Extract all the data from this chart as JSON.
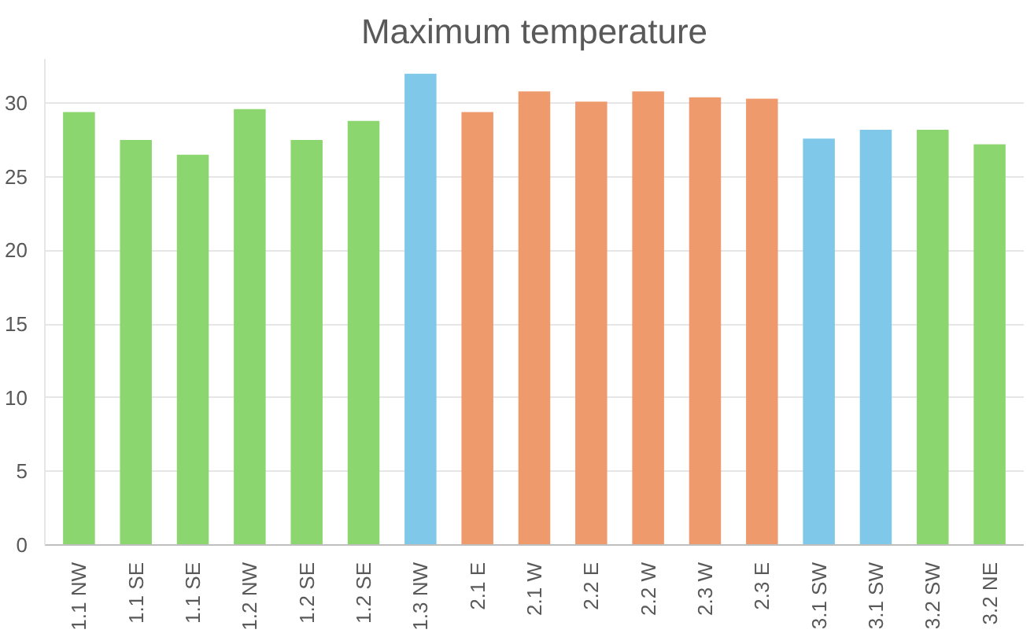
{
  "chart_data": {
    "type": "bar",
    "title": "Maximum temperature",
    "categories": [
      "1.1 NW",
      "1.1 SE",
      "1.1 SE",
      "1.2 NW",
      "1.2 SE",
      "1.2 SE",
      "1.3 NW",
      "2.1 E",
      "2.1 W",
      "2.2 E",
      "2.2 W",
      "2.3 W",
      "2.3 E",
      "3.1 SW",
      "3.1 SW",
      "3.2 SW",
      "3.2 NE"
    ],
    "values": [
      29.4,
      27.5,
      26.5,
      29.6,
      27.5,
      28.8,
      32.0,
      29.4,
      30.8,
      30.1,
      30.8,
      30.4,
      30.3,
      27.6,
      28.2,
      28.2,
      27.2
    ],
    "colors": [
      "#8cd66f",
      "#8cd66f",
      "#8cd66f",
      "#8cd66f",
      "#8cd66f",
      "#8cd66f",
      "#7fc8ea",
      "#ee9a6c",
      "#ee9a6c",
      "#ee9a6c",
      "#ee9a6c",
      "#ee9a6c",
      "#ee9a6c",
      "#7fc8ea",
      "#7fc8ea",
      "#8cd66f",
      "#8cd66f"
    ],
    "ylim": [
      0,
      33
    ],
    "yticks": [
      0,
      5,
      10,
      15,
      20,
      25,
      30
    ],
    "grid": "y"
  }
}
